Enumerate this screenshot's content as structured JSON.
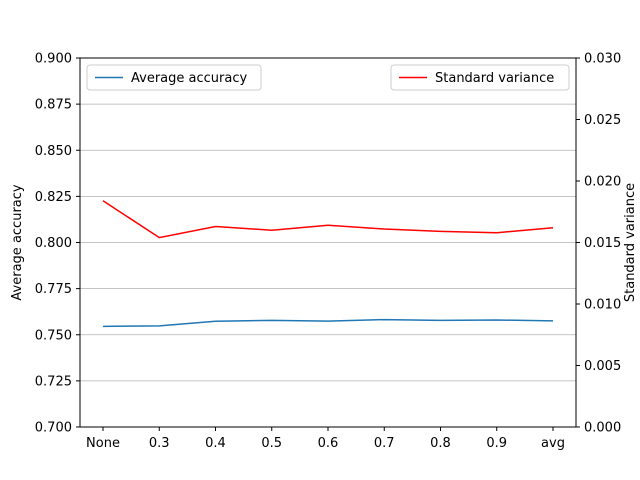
{
  "chart_data": {
    "type": "line",
    "title": "",
    "categories": [
      "None",
      "0.3",
      "0.4",
      "0.5",
      "0.6",
      "0.7",
      "0.8",
      "0.9",
      "avg"
    ],
    "y_left": {
      "label": "Average accuracy",
      "ylim": [
        0.7,
        0.9
      ],
      "ticks": [
        0.7,
        0.725,
        0.75,
        0.775,
        0.8,
        0.825,
        0.85,
        0.875,
        0.9
      ],
      "tick_labels": [
        "0.700",
        "0.725",
        "0.750",
        "0.775",
        "0.800",
        "0.825",
        "0.850",
        "0.875",
        "0.900"
      ]
    },
    "y_right": {
      "label": "Standard variance",
      "ylim": [
        0.0,
        0.03
      ],
      "ticks": [
        0.0,
        0.005,
        0.01,
        0.015,
        0.02,
        0.025,
        0.03
      ],
      "tick_labels": [
        "0.000",
        "0.005",
        "0.010",
        "0.015",
        "0.020",
        "0.025",
        "0.030"
      ]
    },
    "grid": "horizontal",
    "series": [
      {
        "name": "Average accuracy",
        "axis": "left",
        "color": "#1f77b4",
        "values": [
          0.7545,
          0.7548,
          0.7573,
          0.7578,
          0.7574,
          0.7582,
          0.7578,
          0.758,
          0.7575
        ]
      },
      {
        "name": "Standard variance",
        "axis": "right",
        "color": "#ff0000",
        "values": [
          0.0184,
          0.0154,
          0.0163,
          0.016,
          0.0164,
          0.0161,
          0.0159,
          0.0158,
          0.0162
        ]
      }
    ],
    "legends": [
      {
        "series": "Average accuracy",
        "placement": "top-left"
      },
      {
        "series": "Standard variance",
        "placement": "top-right"
      }
    ]
  }
}
